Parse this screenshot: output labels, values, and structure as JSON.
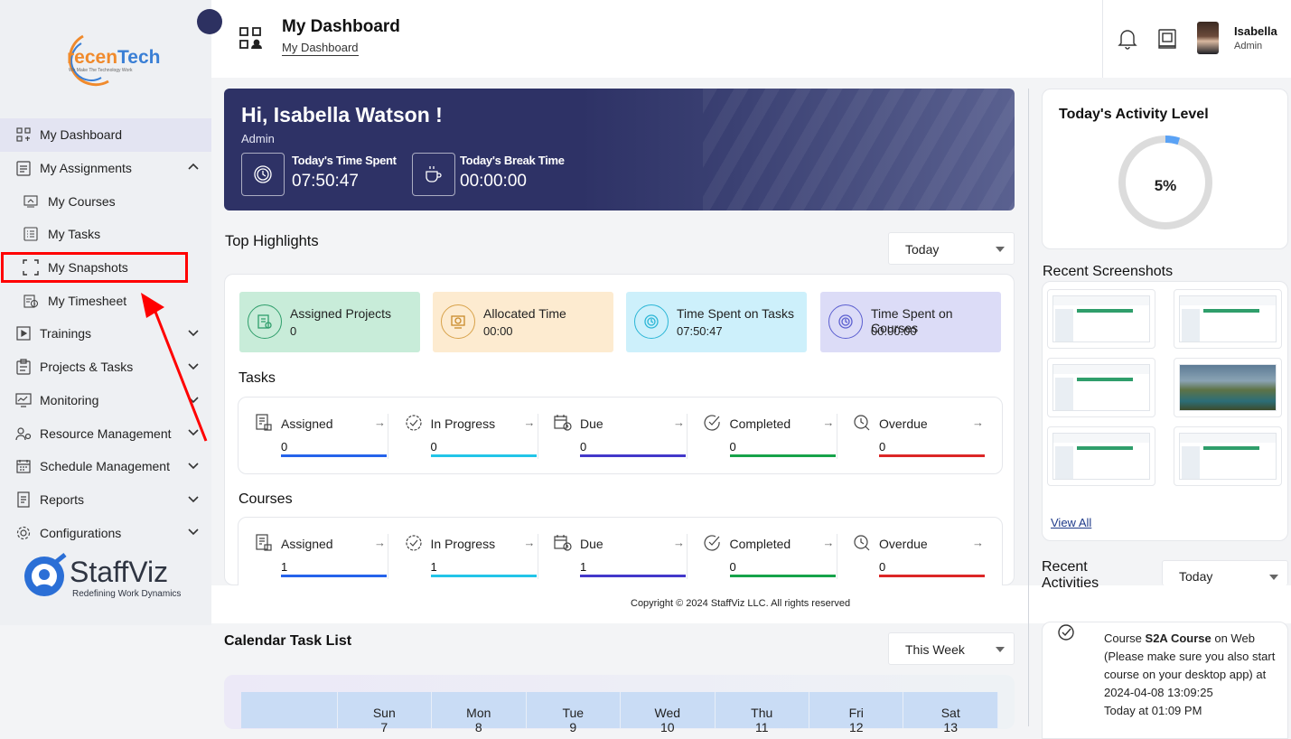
{
  "brand": {
    "top_logo_text": "recenTech",
    "top_logo_tagline": "We Make The Technology Work",
    "bottom_logo_text": "StaffViz",
    "bottom_logo_tagline": "Redefining Work Dynamics"
  },
  "sidebar": {
    "items": [
      {
        "label": "My Dashboard",
        "icon": "dashboard-icon"
      },
      {
        "label": "My Assignments",
        "icon": "assignments-icon"
      },
      {
        "label": "My Courses",
        "icon": "courses-icon"
      },
      {
        "label": "My Tasks",
        "icon": "tasks-icon"
      },
      {
        "label": "My Snapshots",
        "icon": "snapshots-icon"
      },
      {
        "label": "My Timesheet",
        "icon": "timesheet-icon"
      },
      {
        "label": "Trainings",
        "icon": "trainings-icon"
      },
      {
        "label": "Projects & Tasks",
        "icon": "projects-icon"
      },
      {
        "label": "Monitoring",
        "icon": "monitoring-icon"
      },
      {
        "label": "Resource Management",
        "icon": "resource-icon"
      },
      {
        "label": "Schedule Management",
        "icon": "schedule-icon"
      },
      {
        "label": "Reports",
        "icon": "reports-icon"
      },
      {
        "label": "Configurations",
        "icon": "config-icon"
      }
    ]
  },
  "header": {
    "title": "My Dashboard",
    "breadcrumb": "My Dashboard",
    "user_name": "Isabella",
    "user_role": "Admin"
  },
  "hero": {
    "greeting": "Hi, Isabella Watson !",
    "role": "Admin",
    "time_spent_label": "Today's Time Spent",
    "time_spent_value": "07:50:47",
    "break_label": "Today's Break Time",
    "break_value": "00:00:00"
  },
  "highlights": {
    "title": "Top Highlights",
    "filter": "Today",
    "cards": [
      {
        "label": "Assigned Projects",
        "value": "0",
        "color": "#c8ecd9"
      },
      {
        "label": "Allocated Time",
        "value": "00:00",
        "color": "#fdebd0"
      },
      {
        "label": "Time Spent on Tasks",
        "value": "07:50:47",
        "color": "#cdf0fb"
      },
      {
        "label": "Time Spent on Courses",
        "value": "00:00:00",
        "color": "#dcdcf7"
      }
    ]
  },
  "tasks": {
    "title": "Tasks",
    "stats": [
      {
        "label": "Assigned",
        "value": "0",
        "color": "#2563eb"
      },
      {
        "label": "In Progress",
        "value": "0",
        "color": "#22c5e8"
      },
      {
        "label": "Due",
        "value": "0",
        "color": "#4338ca"
      },
      {
        "label": "Completed",
        "value": "0",
        "color": "#16a34a"
      },
      {
        "label": "Overdue",
        "value": "0",
        "color": "#dc2626"
      }
    ]
  },
  "courses": {
    "title": "Courses",
    "stats": [
      {
        "label": "Assigned",
        "value": "1",
        "color": "#2563eb"
      },
      {
        "label": "In Progress",
        "value": "1",
        "color": "#22c5e8"
      },
      {
        "label": "Due",
        "value": "1",
        "color": "#4338ca"
      },
      {
        "label": "Completed",
        "value": "0",
        "color": "#16a34a"
      },
      {
        "label": "Overdue",
        "value": "0",
        "color": "#dc2626"
      }
    ]
  },
  "footer": {
    "copyright": "Copyright © 2024 StaffViz LLC. All rights reserved"
  },
  "calendar": {
    "title": "Calendar Task List",
    "filter": "This Week",
    "days": [
      {
        "name": "",
        "date": ""
      },
      {
        "name": "Sun",
        "date": "7"
      },
      {
        "name": "Mon",
        "date": "8"
      },
      {
        "name": "Tue",
        "date": "9"
      },
      {
        "name": "Wed",
        "date": "10"
      },
      {
        "name": "Thu",
        "date": "11"
      },
      {
        "name": "Fri",
        "date": "12"
      },
      {
        "name": "Sat",
        "date": "13"
      }
    ]
  },
  "activity": {
    "title": "Today's Activity Level",
    "percent_label": "5%",
    "percent": 0.05
  },
  "screenshots": {
    "title": "Recent Screenshots",
    "view_all": "View All"
  },
  "recent_activities": {
    "title": "Recent Activities",
    "filter": "Today",
    "item_prefix": "Course ",
    "item_bold": "S2A Course",
    "item_rest": " on Web (Please make sure you also start course on your desktop app) at 2024-04-08 13:09:25",
    "item_time": "Today at 01:09 PM"
  }
}
